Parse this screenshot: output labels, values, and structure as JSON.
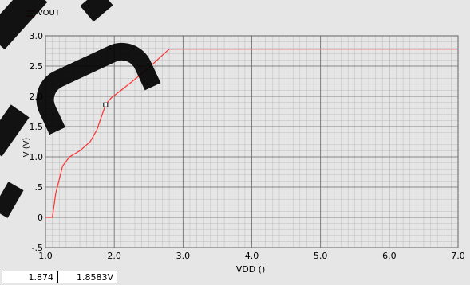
{
  "legend": {
    "series_label": "VOUT"
  },
  "readout": {
    "x_value": "1.874",
    "y_value": "1.8583V"
  },
  "colors": {
    "trace": "#ff3030",
    "background": "#e6e6e6",
    "grid_major": "#666666",
    "grid_minor": "#bdbdbd"
  },
  "chart_data": {
    "type": "line",
    "xlabel": "VDD ()",
    "ylabel": "V (V)",
    "xlim": [
      1.0,
      7.0
    ],
    "ylim": [
      -0.5,
      3.0
    ],
    "x_ticks": [
      1.0,
      2.0,
      3.0,
      4.0,
      5.0,
      6.0,
      7.0
    ],
    "x_tick_labels": [
      "1.0",
      "2.0",
      "3.0",
      "4.0",
      "5.0",
      "6.0",
      "7.0"
    ],
    "y_ticks": [
      -0.5,
      0,
      0.5,
      1.0,
      1.5,
      2.0,
      2.5,
      3.0
    ],
    "y_tick_labels": [
      "-.5",
      "0",
      ".5",
      "1.0",
      "1.5",
      "2.0",
      "2.5",
      "3.0"
    ],
    "grid": true,
    "series": [
      {
        "name": "VOUT",
        "x": [
          1.0,
          1.1,
          1.15,
          1.25,
          1.35,
          1.5,
          1.65,
          1.75,
          1.8,
          1.874,
          1.95,
          2.1,
          2.3,
          2.5,
          2.7,
          2.8,
          7.0
        ],
        "y": [
          0.0,
          0.0,
          0.4,
          0.85,
          1.0,
          1.1,
          1.25,
          1.45,
          1.62,
          1.8583,
          1.97,
          2.1,
          2.28,
          2.47,
          2.68,
          2.78,
          2.78
        ]
      }
    ],
    "marker": {
      "x": 1.874,
      "y": 1.8583
    }
  }
}
